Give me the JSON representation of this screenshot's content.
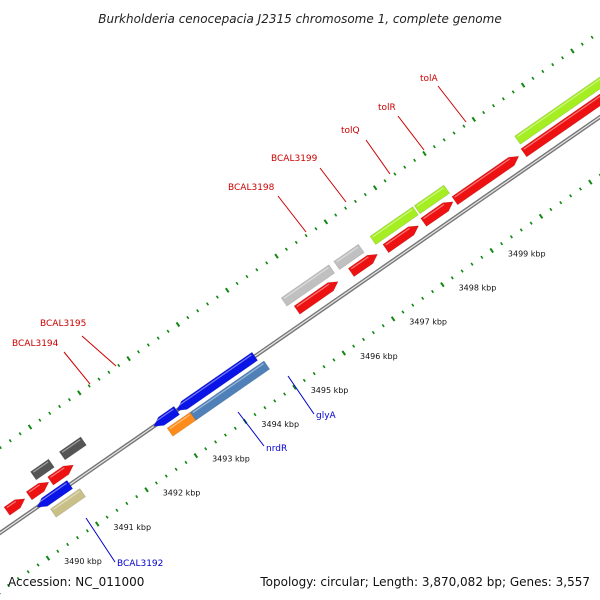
{
  "title": "Burkholderia cenocepacia J2315 chromosome 1, complete genome",
  "footer": {
    "accession": "Accession: NC_011000",
    "summary": "Topology: circular; Length: 3,870,082 bp; Genes: 3,557"
  },
  "colors": {
    "forward_red": "#ee1111",
    "label_red": "#cc0000",
    "label_blue": "#0000cc",
    "gray_light": "#c0c0c0",
    "gray_dark": "#555555",
    "lime": "#a4ee22",
    "blue": "#0a14e6",
    "steel_blue": "#4f80b8",
    "orange": "#ff8c1a",
    "khaki": "#c8c088",
    "slate": "#6060cc",
    "tick_green": "#118811",
    "backbone": "#888888"
  },
  "ticks": [
    {
      "kbp": 3490,
      "label": "3490 kbp"
    },
    {
      "kbp": 3491,
      "label": "3491 kbp"
    },
    {
      "kbp": 3492,
      "label": "3492 kbp"
    },
    {
      "kbp": 3493,
      "label": "3493 kbp"
    },
    {
      "kbp": 3494,
      "label": "3494 kbp"
    },
    {
      "kbp": 3495,
      "label": "3495 kbp"
    },
    {
      "kbp": 3496,
      "label": "3496 kbp"
    },
    {
      "kbp": 3497,
      "label": "3497 kbp"
    },
    {
      "kbp": 3498,
      "label": "3498 kbp"
    },
    {
      "kbp": 3499,
      "label": "3499 kbp"
    }
  ],
  "labels": [
    {
      "text": "BCAL3195",
      "color": "red"
    },
    {
      "text": "BCAL3194",
      "color": "red"
    },
    {
      "text": "BCAL3198",
      "color": "red"
    },
    {
      "text": "BCAL3199",
      "color": "red"
    },
    {
      "text": "tolQ",
      "color": "red"
    },
    {
      "text": "tolR",
      "color": "red"
    },
    {
      "text": "tolA",
      "color": "red"
    },
    {
      "text": "glyA",
      "color": "blue"
    },
    {
      "text": "nrdR",
      "color": "blue"
    },
    {
      "text": "BCAL3192",
      "color": "blue"
    }
  ]
}
